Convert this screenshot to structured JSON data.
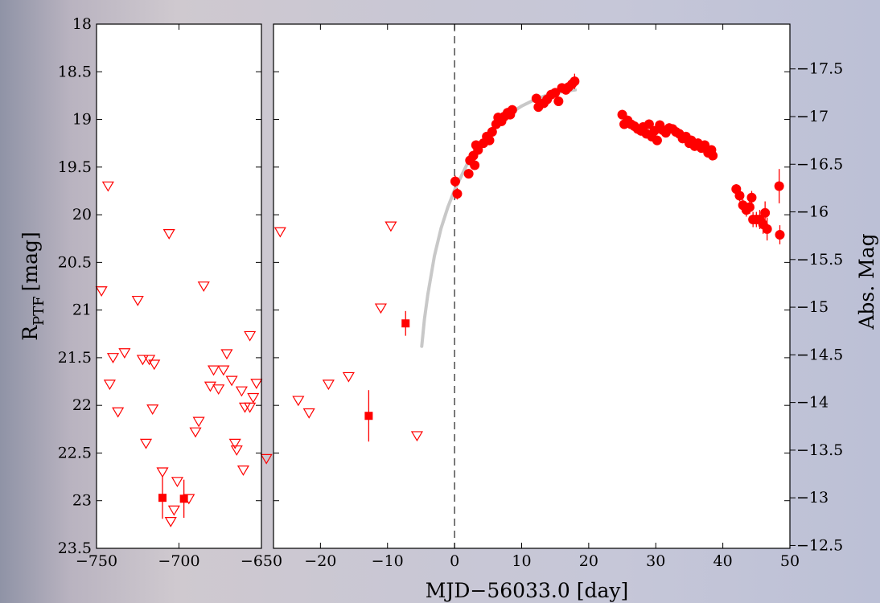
{
  "chart_data": {
    "type": "scatter",
    "ylabel": "R",
    "ylabel_subscript": "PTF",
    "ylabel_unit": "[mag]",
    "y2label": "Abs. Mag",
    "xlabel": "MJD−56033.0 [day]",
    "y_inverted": true,
    "ylim": [
      18,
      23.5
    ],
    "y_ticks": [
      "18",
      "18.5",
      "19",
      "19.5",
      "20",
      "20.5",
      "21",
      "21.5",
      "22",
      "22.5",
      "23",
      "23.5"
    ],
    "y2_ticks": [
      "−17.5",
      "−17",
      "−16.5",
      "−16",
      "−15.5",
      "−15",
      "−14.5",
      "−14",
      "−13.5",
      "−13",
      "−12.5"
    ],
    "left_panel": {
      "xlim": [
        -750,
        -650
      ],
      "x_ticks": [
        "−750",
        "−700",
        "−650"
      ],
      "upper_limits": [
        [
          -743,
          19.7
        ],
        [
          -747,
          20.8
        ],
        [
          -725,
          20.9
        ],
        [
          -706,
          20.2
        ],
        [
          -685,
          20.75
        ],
        [
          -740,
          21.5
        ],
        [
          -733,
          21.45
        ],
        [
          -722,
          21.52
        ],
        [
          -718,
          21.52
        ],
        [
          -715,
          21.57
        ],
        [
          -742,
          21.78
        ],
        [
          -737,
          22.07
        ],
        [
          -716,
          22.04
        ],
        [
          -720,
          22.4
        ],
        [
          -690,
          22.28
        ],
        [
          -688,
          22.17
        ],
        [
          -681,
          21.8
        ],
        [
          -679,
          21.63
        ],
        [
          -676,
          21.83
        ],
        [
          -673,
          21.63
        ],
        [
          -671,
          21.46
        ],
        [
          -668,
          21.74
        ],
        [
          -662,
          21.85
        ],
        [
          -660,
          22.02
        ],
        [
          -657,
          22.02
        ],
        [
          -655,
          21.92
        ],
        [
          -653,
          21.77
        ],
        [
          -657,
          21.27
        ],
        [
          -666,
          22.4
        ],
        [
          -665,
          22.47
        ],
        [
          -661,
          22.68
        ],
        [
          -647,
          22.56
        ],
        [
          -710,
          22.7
        ],
        [
          -701,
          22.8
        ],
        [
          -703,
          23.1
        ],
        [
          -705,
          23.22
        ],
        [
          -694,
          22.98
        ]
      ],
      "detections": [
        {
          "x": -710,
          "y": 22.97,
          "err": 0.22
        },
        {
          "x": -697,
          "y": 22.98,
          "err": 0.2
        }
      ]
    },
    "right_panel": {
      "xlim": [
        -27,
        50
      ],
      "x_ticks": [
        "−20",
        "−10",
        "0",
        "10",
        "20",
        "30",
        "40",
        "50"
      ],
      "explosion_line_x": 0,
      "upper_limits": [
        [
          -26,
          20.18
        ],
        [
          -9.5,
          20.12
        ],
        [
          -11,
          20.98
        ],
        [
          -23.3,
          21.95
        ],
        [
          -21.7,
          22.08
        ],
        [
          -18.8,
          21.78
        ],
        [
          -15.8,
          21.7
        ],
        [
          -5.6,
          22.32
        ]
      ],
      "detections_square": [
        {
          "x": -7.3,
          "y": 21.14,
          "err": 0.13
        },
        {
          "x": -12.8,
          "y": 22.11,
          "err": 0.27
        }
      ],
      "detections_circle": [
        [
          0.1,
          19.65,
          0.06
        ],
        [
          0.4,
          19.78,
          0.06
        ],
        [
          2.1,
          19.57,
          0.05
        ],
        [
          2.3,
          19.43,
          0.05
        ],
        [
          2.8,
          19.38,
          0.05
        ],
        [
          3.0,
          19.48,
          0.05
        ],
        [
          3.2,
          19.27,
          0.05
        ],
        [
          3.5,
          19.32,
          0.05
        ],
        [
          4.3,
          19.25,
          0.05
        ],
        [
          4.8,
          19.18,
          0.05
        ],
        [
          5.2,
          19.22,
          0.05
        ],
        [
          5.6,
          19.13,
          0.05
        ],
        [
          6.2,
          19.05,
          0.05
        ],
        [
          6.5,
          18.98,
          0.05
        ],
        [
          7.0,
          19.02,
          0.05
        ],
        [
          7.4,
          18.97,
          0.05
        ],
        [
          7.9,
          18.93,
          0.05
        ],
        [
          8.3,
          18.95,
          0.05
        ],
        [
          8.6,
          18.9,
          0.05
        ],
        [
          12.2,
          18.78,
          0.05
        ],
        [
          12.5,
          18.87,
          0.05
        ],
        [
          13.3,
          18.83,
          0.05
        ],
        [
          13.8,
          18.79,
          0.05
        ],
        [
          14.4,
          18.74,
          0.05
        ],
        [
          15.0,
          18.72,
          0.05
        ],
        [
          15.5,
          18.81,
          0.05
        ],
        [
          16.0,
          18.67,
          0.05
        ],
        [
          16.6,
          18.69,
          0.05
        ],
        [
          17.0,
          18.66,
          0.05
        ],
        [
          17.5,
          18.63,
          0.05
        ],
        [
          17.9,
          18.6,
          0.08
        ],
        [
          25.0,
          18.95,
          0.05
        ],
        [
          25.3,
          19.05,
          0.05
        ],
        [
          25.8,
          19.01,
          0.05
        ],
        [
          26.3,
          19.05,
          0.05
        ],
        [
          26.8,
          19.07,
          0.05
        ],
        [
          27.3,
          19.1,
          0.05
        ],
        [
          27.8,
          19.12,
          0.05
        ],
        [
          28.1,
          19.08,
          0.05
        ],
        [
          28.6,
          19.15,
          0.05
        ],
        [
          29.0,
          19.05,
          0.05
        ],
        [
          29.4,
          19.18,
          0.05
        ],
        [
          29.8,
          19.12,
          0.05
        ],
        [
          30.2,
          19.22,
          0.05
        ],
        [
          30.6,
          19.06,
          0.05
        ],
        [
          31.0,
          19.11,
          0.05
        ],
        [
          31.5,
          19.14,
          0.05
        ],
        [
          32.0,
          19.09,
          0.05
        ],
        [
          32.5,
          19.1,
          0.05
        ],
        [
          33.0,
          19.13,
          0.05
        ],
        [
          33.5,
          19.15,
          0.05
        ],
        [
          34.0,
          19.2,
          0.05
        ],
        [
          34.5,
          19.18,
          0.05
        ],
        [
          35.0,
          19.25,
          0.05
        ],
        [
          35.3,
          19.22,
          0.05
        ],
        [
          35.8,
          19.28,
          0.05
        ],
        [
          36.3,
          19.25,
          0.05
        ],
        [
          36.8,
          19.3,
          0.05
        ],
        [
          37.3,
          19.27,
          0.05
        ],
        [
          37.8,
          19.35,
          0.05
        ],
        [
          38.3,
          19.32,
          0.05
        ],
        [
          38.5,
          19.38,
          0.05
        ],
        [
          42.0,
          19.73,
          0.05
        ],
        [
          42.5,
          19.8,
          0.06
        ],
        [
          43.0,
          19.9,
          0.06
        ],
        [
          43.5,
          19.95,
          0.07
        ],
        [
          44.0,
          19.92,
          0.07
        ],
        [
          44.5,
          20.05,
          0.08
        ],
        [
          44.3,
          19.82,
          0.07
        ],
        [
          45.0,
          20.05,
          0.08
        ],
        [
          45.5,
          20.05,
          0.1
        ],
        [
          46.0,
          20.1,
          0.1
        ],
        [
          46.3,
          19.98,
          0.12
        ],
        [
          46.6,
          20.15,
          0.12
        ],
        [
          48.4,
          19.7,
          0.18
        ],
        [
          48.5,
          20.21,
          0.1
        ]
      ],
      "model_curve": [
        [
          -4.9,
          21.38
        ],
        [
          -4.5,
          21.1
        ],
        [
          -4,
          20.84
        ],
        [
          -3,
          20.43
        ],
        [
          -2,
          20.14
        ],
        [
          -1,
          19.92
        ],
        [
          0,
          19.74
        ],
        [
          2,
          19.45
        ],
        [
          4,
          19.24
        ],
        [
          6,
          19.07
        ],
        [
          8,
          18.95
        ],
        [
          10,
          18.86
        ],
        [
          12,
          18.79
        ],
        [
          14,
          18.74
        ],
        [
          16,
          18.71
        ],
        [
          18,
          18.69
        ]
      ]
    },
    "colors": {
      "data": "#ff0000",
      "model": "#c8c8c8",
      "frame": "#000000"
    }
  }
}
